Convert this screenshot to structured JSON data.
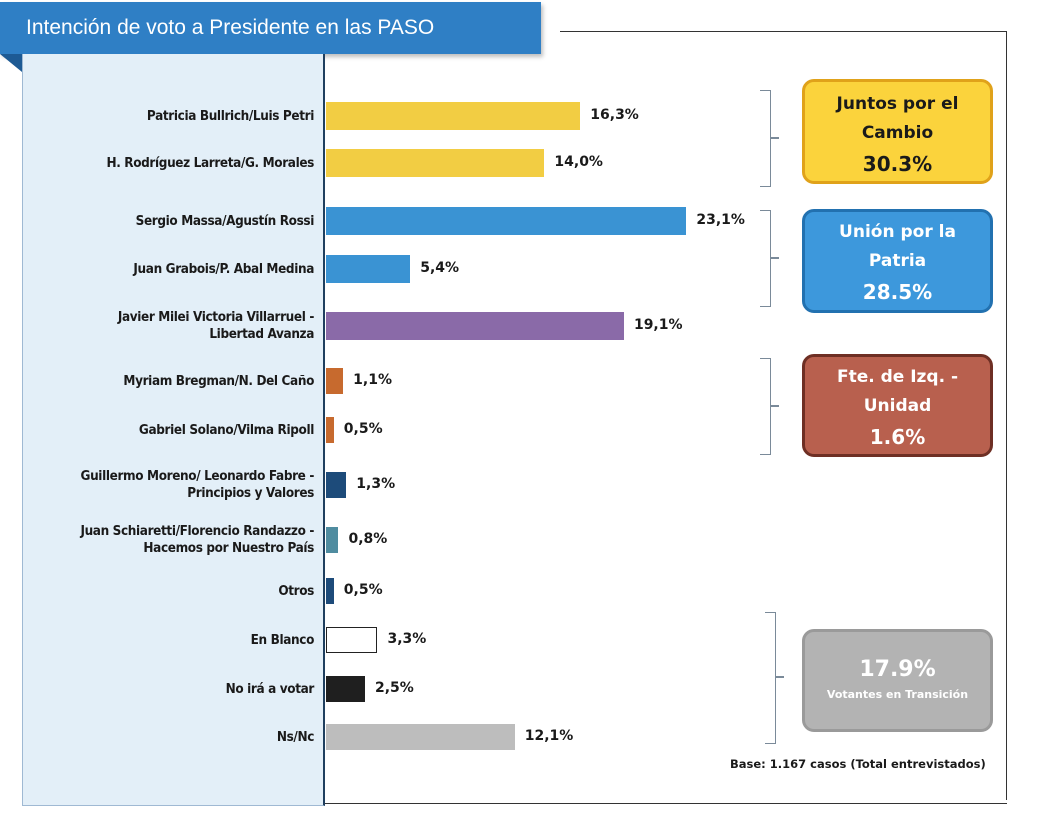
{
  "header": {
    "title": "Intención de voto a Presidente en las PASO"
  },
  "chart_data": {
    "type": "bar",
    "orientation": "horizontal",
    "title": "Intención de voto a Presidente en las PASO",
    "categories": [
      "Patricia Bullrich/Luis Petri",
      "H. Rodríguez Larreta/G. Morales",
      "Sergio Massa/Agustín Rossi",
      "Juan Grabois/P. Abal Medina",
      "Javier Milei Victoria Villarruel - Libertad Avanza",
      "Myriam Bregman/N. Del Caño",
      "Gabriel Solano/Vilma Ripoll",
      "Guillermo Moreno/ Leonardo Fabre - Principios y Valores",
      "Juan Schiaretti/Florencio Randazzo - Hacemos por Nuestro País",
      "Otros",
      "En Blanco",
      "No irá a votar",
      "Ns/Nc"
    ],
    "label_lines": [
      [
        "Patricia Bullrich/Luis Petri"
      ],
      [
        "H. Rodríguez Larreta/G. Morales"
      ],
      [
        "Sergio Massa/Agustín Rossi"
      ],
      [
        "Juan Grabois/P. Abal Medina"
      ],
      [
        "Javier Milei Victoria Villarruel -",
        "Libertad Avanza"
      ],
      [
        "Myriam Bregman/N. Del Caño"
      ],
      [
        "Gabriel Solano/Vilma Ripoll"
      ],
      [
        "Guillermo Moreno/ Leonardo Fabre -",
        "Principios y Valores"
      ],
      [
        "Juan Schiaretti/Florencio Randazzo -",
        "Hacemos por Nuestro País"
      ],
      [
        "Otros"
      ],
      [
        "En Blanco"
      ],
      [
        "No irá a votar"
      ],
      [
        "Ns/Nc"
      ]
    ],
    "values": [
      16.3,
      14.0,
      23.1,
      5.4,
      19.1,
      1.1,
      0.5,
      1.3,
      0.8,
      0.5,
      3.3,
      2.5,
      12.1
    ],
    "value_labels": [
      "16,3%",
      "14,0%",
      "23,1%",
      "5,4%",
      "19,1%",
      "1,1%",
      "0,5%",
      "1,3%",
      "0,8%",
      "0,5%",
      "3,3%",
      "2,5%",
      "12,1%"
    ],
    "colors": [
      "#f2cd43",
      "#f2cd43",
      "#3a93d3",
      "#3a93d3",
      "#8a6aa8",
      "#c76a2e",
      "#c76a2e",
      "#1d4b7a",
      "#4f8ca0",
      "#1d4b7a",
      "#ffffff",
      "#1f1f1f",
      "#bdbdbd"
    ],
    "xlim": [
      0,
      25
    ],
    "grid": false,
    "legend": "none"
  },
  "groups": [
    {
      "name_lines": [
        "Juntos por el",
        "Cambio"
      ],
      "total": "30.3%",
      "bg": "#fbd33c",
      "border": "#e0a21a",
      "text_color": "#1a1a1a"
    },
    {
      "name_lines": [
        "Unión por la",
        "Patria"
      ],
      "total": "28.5%",
      "bg": "#3d98dc",
      "border": "#2271b0",
      "text_color": "#ffffff"
    },
    {
      "name_lines": [
        "Fte. de Izq. -",
        "Unidad"
      ],
      "total": "1.6%",
      "bg": "#b8604e",
      "border": "#6e2f24",
      "text_color": "#ffffff"
    },
    {
      "total": "17.9%",
      "subtitle": "Votantes en Transición",
      "bg": "#b3b3b3",
      "border": "#9a9a9a",
      "text_color": "#ffffff"
    }
  ],
  "footer": {
    "base_note": "Base: 1.167  casos (Total entrevistados)"
  }
}
